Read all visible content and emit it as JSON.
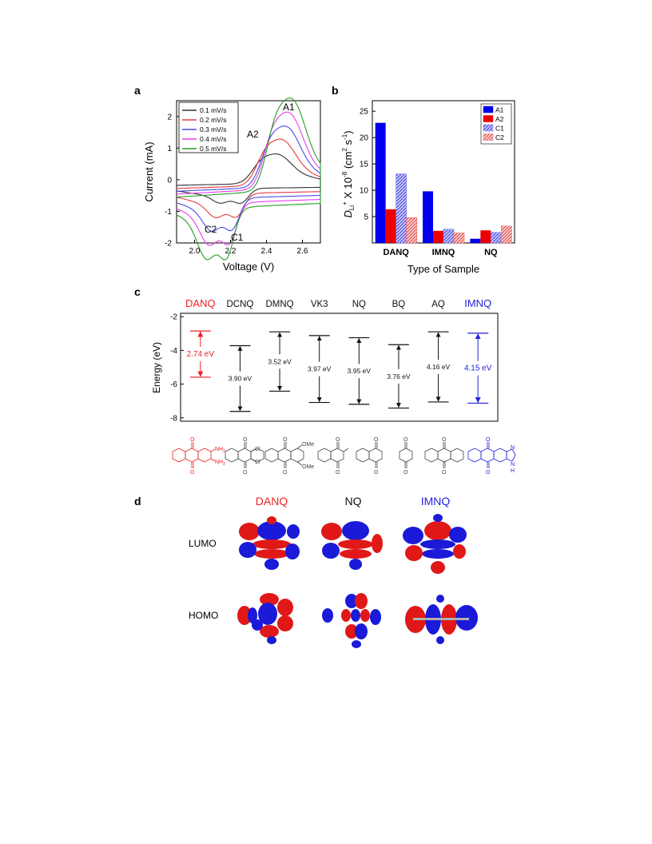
{
  "panels": {
    "a": {
      "letter": "a"
    },
    "b": {
      "letter": "b"
    },
    "c": {
      "letter": "c"
    },
    "d": {
      "letter": "d"
    }
  },
  "chart_data": [
    {
      "id": "a",
      "type": "line",
      "xlabel": "Voltage (V)",
      "ylabel": "Current (mA)",
      "xlim": [
        1.9,
        2.7
      ],
      "ylim": [
        -2,
        2.5
      ],
      "xticks": [
        2.0,
        2.2,
        2.4,
        2.6
      ],
      "yticks": [
        -2,
        -1,
        0,
        1,
        2
      ],
      "legend_position": "top-left",
      "grid": false,
      "annotations": [
        "A1",
        "A2",
        "C1",
        "C2"
      ],
      "series": [
        {
          "name": "0.1 mV/s",
          "color": "#333333",
          "scale": 0.32,
          "shift": 0.0
        },
        {
          "name": "0.2 mV/s",
          "color": "#e8383d",
          "scale": 0.5,
          "shift": 0.025
        },
        {
          "name": "0.3 mV/s",
          "color": "#4a4aec",
          "scale": 0.66,
          "shift": 0.05
        },
        {
          "name": "0.4 mV/s",
          "color": "#e040e8",
          "scale": 0.83,
          "shift": 0.065
        },
        {
          "name": "0.5 mV/s",
          "color": "#22a022",
          "scale": 1.0,
          "shift": 0.08
        }
      ]
    },
    {
      "id": "b",
      "type": "bar",
      "xlabel": "Type of Sample",
      "ylabel_parts": [
        "D",
        "Li",
        "+",
        " X 10",
        "-8",
        " (cm",
        "2",
        " s",
        "-1",
        ")"
      ],
      "categories": [
        "DANQ",
        "IMNQ",
        "NQ"
      ],
      "ylim": [
        0,
        27
      ],
      "yticks": [
        5,
        10,
        15,
        20,
        25
      ],
      "legend_position": "top-right",
      "grid": false,
      "series": [
        {
          "name": "A1",
          "color": "#0000ee",
          "pattern": "solid",
          "values": [
            22.8,
            9.8,
            0.8
          ]
        },
        {
          "name": "A2",
          "color": "#ee0000",
          "pattern": "solid",
          "values": [
            6.4,
            2.3,
            2.4
          ]
        },
        {
          "name": "C1",
          "color": "#7070ee",
          "pattern": "hatch",
          "values": [
            13.1,
            2.6,
            2.0
          ]
        },
        {
          "name": "C2",
          "color": "#ee6060",
          "pattern": "hatch",
          "values": [
            4.8,
            1.9,
            3.2
          ]
        }
      ]
    },
    {
      "id": "c",
      "type": "range",
      "ylabel": "Energy (eV)",
      "ylim": [
        -8.2,
        -1.8
      ],
      "yticks": [
        -2,
        -4,
        -6,
        -8
      ],
      "grid": false,
      "molecules": [
        {
          "name": "DANQ",
          "color": "#ee2222",
          "top": -2.85,
          "bottom": -5.59,
          "gap": "2.74 eV"
        },
        {
          "name": "DCNQ",
          "color": "#111111",
          "top": -3.72,
          "bottom": -7.62,
          "gap": "3.90 eV"
        },
        {
          "name": "DMNQ",
          "color": "#111111",
          "top": -2.9,
          "bottom": -6.42,
          "gap": "3.52 eV"
        },
        {
          "name": "VK3",
          "color": "#111111",
          "top": -3.12,
          "bottom": -7.09,
          "gap": "3.97 eV"
        },
        {
          "name": "NQ",
          "color": "#111111",
          "top": -3.25,
          "bottom": -7.2,
          "gap": "3.95 eV"
        },
        {
          "name": "BQ",
          "color": "#111111",
          "top": -3.66,
          "bottom": -7.42,
          "gap": "3.76 eV"
        },
        {
          "name": "AQ",
          "color": "#111111",
          "top": -2.9,
          "bottom": -7.06,
          "gap": "4.16 eV"
        },
        {
          "name": "IMNQ",
          "color": "#2222dd",
          "top": -2.98,
          "bottom": -7.13,
          "gap": "4.15 eV"
        }
      ],
      "structure_labels": {
        "danq": [
          "O",
          "NH",
          "2",
          "NH",
          "2",
          "O"
        ],
        "dcnq": [
          "O",
          "Cl",
          "Cl",
          "O"
        ],
        "dmnq": [
          "O",
          "OMe",
          "OMe",
          "O"
        ],
        "vk3": [
          "O",
          "O"
        ],
        "nq": [
          "O",
          "O"
        ],
        "bq": [
          "O",
          "O"
        ],
        "aq": [
          "O",
          "O"
        ],
        "imnq": [
          "O",
          "N",
          "N",
          "H",
          "O"
        ]
      }
    }
  ],
  "orbitals": {
    "columns": [
      {
        "name": "DANQ",
        "color": "#ee2222"
      },
      {
        "name": "NQ",
        "color": "#111111"
      },
      {
        "name": "IMNQ",
        "color": "#2222dd"
      }
    ],
    "rows": [
      "LUMO",
      "HOMO"
    ],
    "lobe_colors": {
      "positive": "#e01818",
      "negative": "#1a1ad8",
      "atom": "#b0b0b0"
    }
  }
}
